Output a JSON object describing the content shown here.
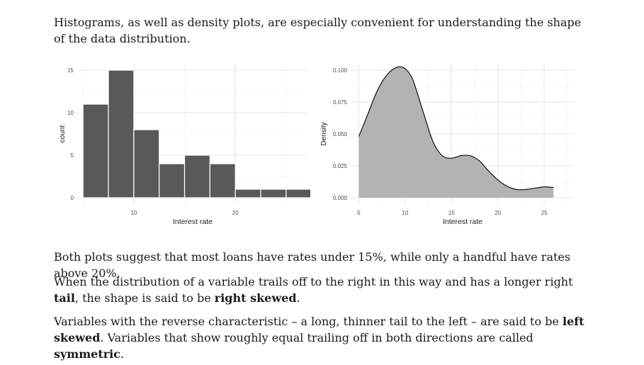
{
  "text": {
    "intro": "Histograms, as well as density plots, are especially convenient for understanding the shape of the data distribution.",
    "both_plots": "Both plots suggest that most loans have rates under 15%, while only a handful have rates above 20%.",
    "right_skew_pre": "When the distribution of a variable trails off to the right in this way and has a longer right ",
    "right_skew_tail": "tail",
    "right_skew_mid": ", the shape is said to be ",
    "right_skew_term": "right skewed",
    "right_skew_end": ".",
    "left_skew_pre": "Variables with the reverse characteristic – a long, thinner tail to the left – are said to be ",
    "left_skew_term": "left skewed",
    "left_skew_mid": ". Variables that show roughly equal trailing off in both directions are called ",
    "symmetric_term": "symmetric",
    "left_skew_end": "."
  },
  "chart_data": [
    {
      "type": "bar",
      "xlabel": "Interest rate",
      "ylabel": "count",
      "xlim": [
        4.5,
        27.1
      ],
      "ylim": [
        -0.75,
        15.75
      ],
      "x_ticks": [
        10,
        20
      ],
      "y_ticks": [
        0,
        5,
        10,
        15
      ],
      "bin_width": 2.5,
      "bin_starts": [
        5.0,
        7.5,
        10.0,
        12.5,
        15.0,
        17.5,
        20.0,
        22.5,
        25.0
      ],
      "values": [
        11,
        15,
        8,
        4,
        5,
        4,
        1,
        1,
        1
      ],
      "bar_color": "#595959",
      "grid": true
    },
    {
      "type": "area",
      "xlabel": "Interest rate",
      "ylabel": "Density",
      "xlim": [
        4.2,
        28.2
      ],
      "ylim": [
        -0.005,
        0.105
      ],
      "x_ticks": [
        5,
        10,
        15,
        20,
        25
      ],
      "y_ticks": [
        0.0,
        0.025,
        0.05,
        0.075,
        0.1
      ],
      "y_tick_labels": [
        "0.000",
        "0.025",
        "0.050",
        "0.075",
        "0.100"
      ],
      "x": [
        5.0,
        6.0,
        7.0,
        8.0,
        9.0,
        9.8,
        10.5,
        11.0,
        12.0,
        13.0,
        14.0,
        15.0,
        16.0,
        17.0,
        18.0,
        19.0,
        20.0,
        21.0,
        22.0,
        23.0,
        24.0,
        25.0,
        26.0
      ],
      "y": [
        0.048,
        0.066,
        0.084,
        0.096,
        0.102,
        0.102,
        0.097,
        0.089,
        0.066,
        0.044,
        0.033,
        0.031,
        0.033,
        0.033,
        0.029,
        0.021,
        0.014,
        0.009,
        0.0065,
        0.0065,
        0.0075,
        0.0085,
        0.008
      ],
      "fill_color": "#b3b3b3",
      "line_color": "#000000",
      "grid": true
    }
  ]
}
